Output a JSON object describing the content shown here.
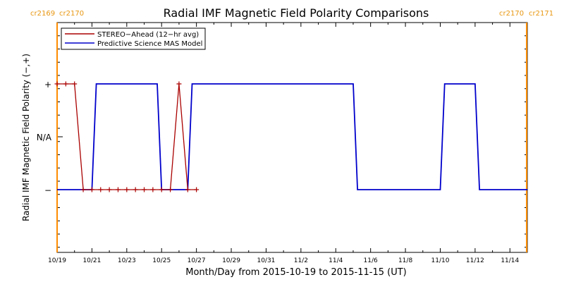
{
  "chart_data": {
    "type": "line",
    "title": "Radial IMF Magnetic Field Polarity Comparisons",
    "xlabel": "Month/Day from 2015-10-19 to 2015-11-15 (UT)",
    "ylabel": "Radial IMF Magnetic Field Polarity (−,+)",
    "xlim": [
      "2015-10-19",
      "2015-11-15"
    ],
    "x_tick_labels": [
      "10/19",
      "10/21",
      "10/23",
      "10/25",
      "10/27",
      "10/29",
      "10/31",
      "11/2",
      "11/4",
      "11/6",
      "11/8",
      "11/10",
      "11/12",
      "11/14"
    ],
    "y_tick_labels": [
      "+",
      "N/A",
      "−"
    ],
    "y_levels": [
      "−",
      "N/A",
      "+"
    ],
    "carrington_left": [
      "cr2169",
      "cr2170"
    ],
    "carrington_right": [
      "cr2170",
      "cr2171"
    ],
    "carrington_boundary_color": "#ff8c00",
    "legend": {
      "placement": "top-left",
      "entries": [
        "STEREO−Ahead (12−hr avg)",
        "Predictive Science MAS Model"
      ]
    },
    "series": [
      {
        "name": "STEREO−Ahead (12−hr avg)",
        "color": "#aa0000",
        "markers": true,
        "points": [
          [
            "2015-10-19",
            1
          ],
          [
            "2015-10-19 12:00",
            1
          ],
          [
            "2015-10-20",
            1
          ],
          [
            "2015-10-20 12:00",
            -1
          ],
          [
            "2015-10-21",
            -1
          ],
          [
            "2015-10-21 12:00",
            -1
          ],
          [
            "2015-10-22",
            -1
          ],
          [
            "2015-10-22 12:00",
            -1
          ],
          [
            "2015-10-23",
            -1
          ],
          [
            "2015-10-23 12:00",
            -1
          ],
          [
            "2015-10-24",
            -1
          ],
          [
            "2015-10-24 12:00",
            -1
          ],
          [
            "2015-10-25",
            -1
          ],
          [
            "2015-10-25 12:00",
            -1
          ],
          [
            "2015-10-26",
            1
          ],
          [
            "2015-10-26 12:00",
            -1
          ],
          [
            "2015-10-27",
            -1
          ]
        ]
      },
      {
        "name": "Predictive Science MAS Model",
        "color": "#0000cc",
        "markers": false,
        "points": [
          [
            "2015-10-19",
            -1
          ],
          [
            "2015-10-21",
            -1
          ],
          [
            "2015-10-21 06:00",
            1
          ],
          [
            "2015-10-24 18:00",
            1
          ],
          [
            "2015-10-25",
            -1
          ],
          [
            "2015-10-26 12:00",
            -1
          ],
          [
            "2015-10-26 18:00",
            1
          ],
          [
            "2015-11-05",
            1
          ],
          [
            "2015-11-05 06:00",
            -1
          ],
          [
            "2015-11-10",
            -1
          ],
          [
            "2015-11-10 06:00",
            1
          ],
          [
            "2015-11-12",
            1
          ],
          [
            "2015-11-12 06:00",
            -1
          ],
          [
            "2015-11-15",
            -1
          ]
        ]
      }
    ]
  }
}
